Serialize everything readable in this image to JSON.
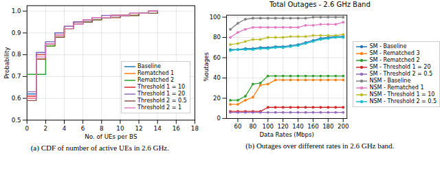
{
  "chart_data": [
    {
      "type": "step",
      "caption": "(a) CDF of number of active UEs in 2.6 GHz.",
      "x_label": "No. of UEs per BS",
      "y_label": "Probability",
      "x": [
        0,
        1,
        2,
        3,
        4,
        5,
        6,
        7,
        8,
        9,
        10,
        11,
        12,
        13,
        14
      ],
      "series": [
        {
          "name": "Baseline",
          "color": "#1f77b4",
          "values": [
            0.62,
            0.81,
            0.86,
            0.9,
            0.93,
            0.95,
            0.96,
            0.97,
            0.97,
            0.98,
            0.98,
            0.99,
            0.99,
            1.0,
            1.0
          ]
        },
        {
          "name": "Rematched 1",
          "color": "#ff7f0e",
          "values": [
            0.6,
            0.78,
            0.84,
            0.88,
            0.92,
            0.94,
            0.95,
            0.96,
            0.97,
            0.97,
            0.98,
            0.98,
            0.99,
            1.0,
            1.0
          ]
        },
        {
          "name": "Rematched 2",
          "color": "#2ca02c",
          "values": [
            0.71,
            0.71,
            0.84,
            0.88,
            0.92,
            0.94,
            0.95,
            0.96,
            0.97,
            0.98,
            0.98,
            0.98,
            0.99,
            0.99,
            1.0
          ]
        },
        {
          "name": "Threshold 1 = 10",
          "color": "#d62728",
          "values": [
            0.61,
            0.8,
            0.85,
            0.89,
            0.93,
            0.95,
            0.96,
            0.97,
            0.97,
            0.98,
            0.98,
            0.99,
            0.99,
            1.0,
            1.0
          ]
        },
        {
          "name": "Threshold 1 = 20",
          "color": "#9467bd",
          "values": [
            0.63,
            0.81,
            0.86,
            0.9,
            0.93,
            0.95,
            0.96,
            0.97,
            0.98,
            0.98,
            0.98,
            0.99,
            0.99,
            1.0,
            1.0
          ]
        },
        {
          "name": "Threshold 2 =  0.5",
          "color": "#8c564b",
          "values": [
            0.59,
            0.78,
            0.85,
            0.88,
            0.92,
            0.94,
            0.95,
            0.96,
            0.97,
            0.97,
            0.98,
            0.98,
            0.99,
            0.99,
            1.0
          ]
        },
        {
          "name": "Threshold 2 = 1",
          "color": "#e377c2",
          "values": [
            0.6,
            0.79,
            0.85,
            0.89,
            0.92,
            0.94,
            0.96,
            0.97,
            0.97,
            0.98,
            0.98,
            0.99,
            0.99,
            1.0,
            1.0
          ]
        }
      ],
      "xlim": [
        0,
        18
      ],
      "xticks": [
        0,
        2,
        4,
        6,
        8,
        10,
        12,
        14,
        16,
        18
      ],
      "ylim": [
        0.5,
        1.025
      ],
      "yticks": [
        0.5,
        0.6,
        0.7,
        0.8,
        0.9,
        {
          "value": 1.0,
          "label": "1.0"
        }
      ],
      "grid": true,
      "legend": "lower right"
    },
    {
      "type": "line",
      "title": "Total Outages - 2.6 GHz Band",
      "caption": "(b) Outages over different rates in 2.6 GHz band.",
      "x_label": "Data Rates (Mbps)",
      "y_label": "%outages",
      "x": [
        50,
        60,
        70,
        80,
        90,
        100,
        110,
        120,
        130,
        140,
        150,
        160,
        170,
        180,
        190,
        200
      ],
      "marker": "circle",
      "series": [
        {
          "name": "SM - Baseline",
          "color": "#1f77b4",
          "values": [
            68,
            68,
            69,
            69,
            70,
            70,
            71,
            71,
            72,
            73,
            75,
            77,
            79,
            80,
            81,
            81
          ]
        },
        {
          "name": "SM - Rematched 3",
          "color": "#ff7f0e",
          "values": [
            14,
            14,
            18,
            21,
            33,
            34,
            38,
            38,
            38,
            38,
            38,
            38,
            38,
            38,
            38,
            38
          ]
        },
        {
          "name": "SM - Rematched 2",
          "color": "#2ca02c",
          "values": [
            18,
            18,
            22,
            34,
            35,
            42,
            42,
            42,
            42,
            42,
            42,
            42,
            42,
            42,
            42,
            42
          ]
        },
        {
          "name": "SM - Threshold 1 = 20",
          "color": "#d62728",
          "values": [
            7,
            7,
            7,
            7,
            7,
            11,
            11,
            11,
            11,
            11,
            11,
            11,
            11,
            11,
            11,
            11
          ]
        },
        {
          "name": "SM - Threshold 2 = 0.5",
          "color": "#9467bd",
          "values": [
            6,
            6,
            6,
            6,
            6,
            6,
            6,
            6,
            6,
            6,
            6,
            6,
            6,
            6,
            6,
            6
          ]
        },
        {
          "name": "NSM - Baseline",
          "color": "#7f7f7f",
          "values": [
            88,
            94,
            98,
            99,
            99,
            99,
            99,
            99,
            99,
            99,
            99,
            100,
            100,
            100,
            100,
            100
          ]
        },
        {
          "name": "NSM - Rematched 1",
          "color": "#e377c2",
          "values": [
            80,
            85,
            88,
            90,
            90,
            90,
            90,
            90,
            90,
            90,
            92,
            92,
            93,
            93,
            93,
            95
          ]
        },
        {
          "name": "NSM - Threshold 1 = 10",
          "color": "#bcbd22",
          "values": [
            73,
            74,
            76,
            78,
            78,
            80,
            80,
            80,
            81,
            81,
            81,
            82,
            82,
            82,
            82,
            83
          ]
        },
        {
          "name": "NSM - Threshold 2 = 0.5",
          "color": "#17becf",
          "values": [
            67,
            68,
            68,
            68,
            69,
            69,
            70,
            70,
            71,
            72,
            74,
            76,
            78,
            79,
            80,
            80
          ]
        }
      ],
      "xlim": [
        45,
        205
      ],
      "xticks": [
        60,
        80,
        100,
        120,
        140,
        160,
        180,
        200
      ],
      "ylim": [
        0,
        102
      ],
      "yticks": [
        0,
        20,
        40,
        60,
        80,
        100
      ],
      "grid": true,
      "legend": "right"
    }
  ]
}
